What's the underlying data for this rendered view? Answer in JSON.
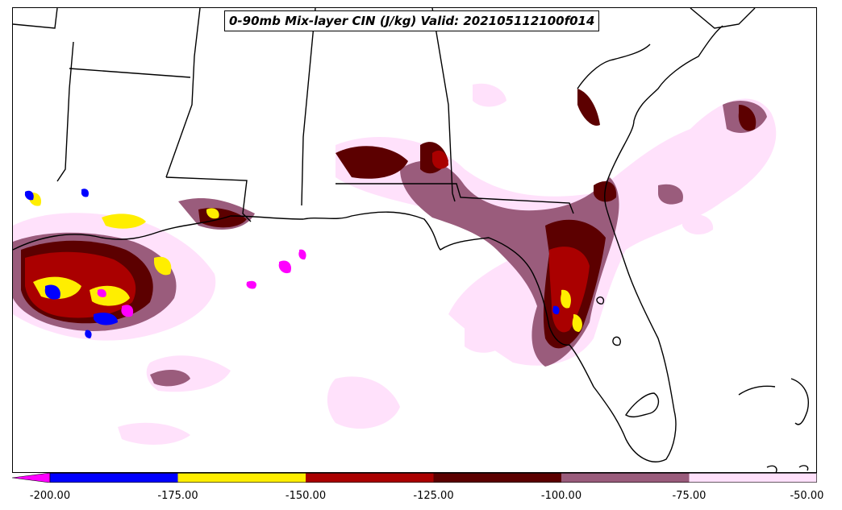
{
  "title": "0-90mb Mix-layer CIN (J/kg) Valid: 202105112100f014",
  "legend": {
    "bins": [
      {
        "from": null,
        "to": -200,
        "color": "#ff00ff"
      },
      {
        "from": -200,
        "to": -175,
        "color": "#0000ff"
      },
      {
        "from": -175,
        "to": -150,
        "color": "#ffee00"
      },
      {
        "from": -150,
        "to": -125,
        "color": "#aa0000"
      },
      {
        "from": -125,
        "to": -100,
        "color": "#5c0000"
      },
      {
        "from": -100,
        "to": -75,
        "color": "#9a5c7c"
      },
      {
        "from": -75,
        "to": -50,
        "color": "#ffe1fb"
      }
    ],
    "tick_labels": [
      "-200.00",
      "-175.00",
      "-150.00",
      "-125.00",
      "-100.00",
      "-75.00",
      "-50.00"
    ]
  },
  "map": {
    "region": "US Gulf Coast and Florida",
    "features": [
      "state-borders",
      "coastline",
      "cin-contours"
    ]
  }
}
